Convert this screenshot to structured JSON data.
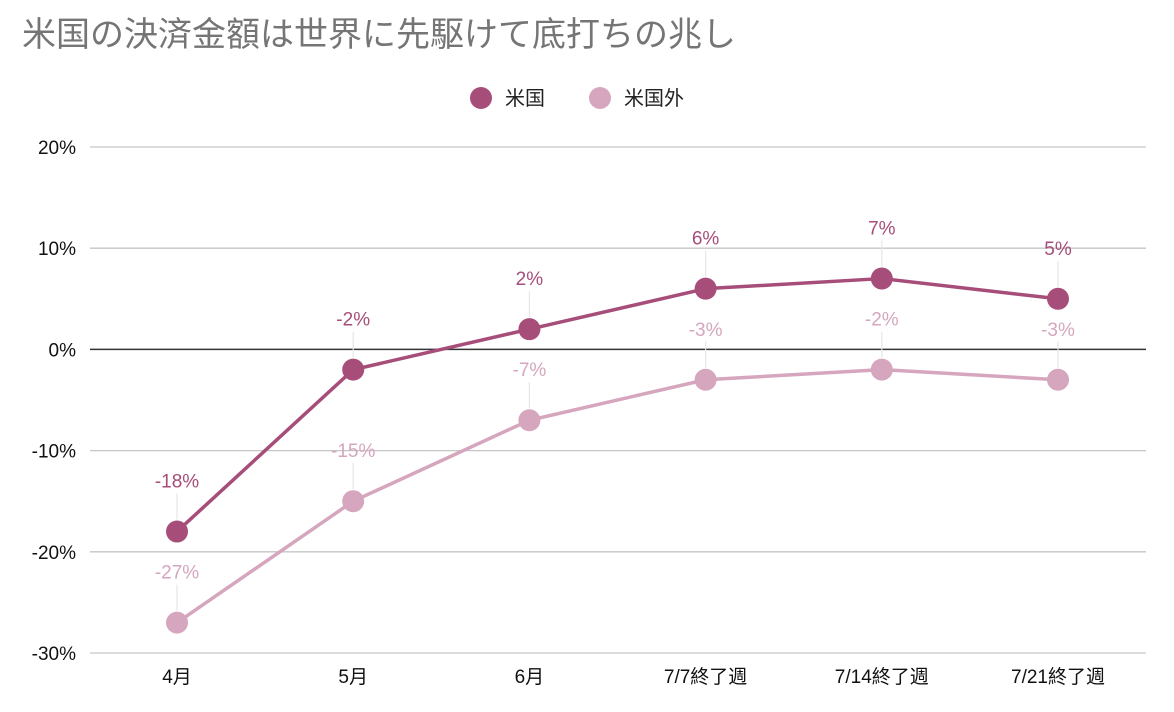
{
  "chart_data": {
    "type": "line",
    "title": "米国の決済金額は世界に先駆けて底打ちの兆し",
    "categories": [
      "4月",
      "5月",
      "6月",
      "7/7終了週",
      "7/14終了週",
      "7/21終了週"
    ],
    "series": [
      {
        "name": "米国",
        "values": [
          -18,
          -2,
          2,
          6,
          7,
          5
        ],
        "labels": [
          "-18%",
          "-2%",
          "2%",
          "6%",
          "7%",
          "5%"
        ],
        "color": "#a64d79"
      },
      {
        "name": "米国外",
        "values": [
          -27,
          -15,
          -7,
          -3,
          -2,
          -3
        ],
        "labels": [
          "-27%",
          "-15%",
          "-7%",
          "-3%",
          "-2%",
          "-3%"
        ],
        "color": "#d5a6bd"
      }
    ],
    "ylim": [
      -30,
      20
    ],
    "yticks": [
      20,
      10,
      0,
      -10,
      -20,
      -30
    ],
    "ytick_labels": [
      "20%",
      "10%",
      "0%",
      "-10%",
      "-20%",
      "-30%"
    ],
    "grid": true,
    "legend_position": "top-center",
    "xlabel": "",
    "ylabel": ""
  }
}
